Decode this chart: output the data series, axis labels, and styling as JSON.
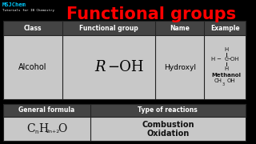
{
  "title": "Functional groups",
  "title_color": "#FF0000",
  "bg_color": "#000000",
  "logo_text1": "MSJChem",
  "logo_text2": "Tutorials for IB Chemistry",
  "logo_color1": "#00CCFF",
  "logo_color2": "#FFFFFF",
  "table_bg": "#C8C8C8",
  "header_bg": "#444444",
  "header_text_color": "#FFFFFF",
  "cell_text_color": "#000000",
  "col_headers": [
    "Class",
    "Functional group",
    "Name",
    "Example"
  ],
  "row1_class": "Alcohol",
  "row1_name": "Hydroxyl",
  "formula_label": "General formula",
  "reactions_label": "Type of reactions",
  "reactions": [
    "Combustion",
    "Oxidation"
  ]
}
